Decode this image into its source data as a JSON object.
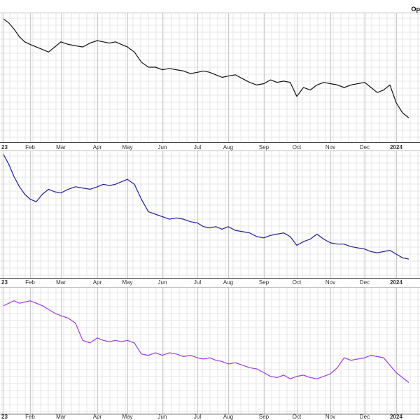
{
  "header": {
    "top_right_label": "Op"
  },
  "chart_data": [
    {
      "type": "line",
      "panel": 1,
      "series_color": "#111111",
      "ylim": [
        0,
        100
      ],
      "x_tick_labels": [
        "23",
        "Feb",
        "Mar",
        "Apr",
        "May",
        "Jun",
        "Jul",
        "Aug",
        "Sep",
        "Oct",
        "Nov",
        "Dec",
        "2024"
      ],
      "x_tick_months": [
        0,
        1,
        2,
        3,
        4,
        5,
        6,
        7,
        8,
        9,
        10,
        11,
        12
      ],
      "series": [
        {
          "x": [
            0,
            0.2,
            0.4,
            0.6,
            0.8,
            1.0,
            1.2,
            1.4,
            1.6,
            1.8,
            2.0,
            2.2,
            2.4,
            2.6,
            2.8,
            3.0,
            3.2,
            3.4,
            3.6,
            3.8,
            4.0,
            4.2,
            4.4,
            4.6,
            4.8,
            5.0,
            5.2,
            5.4,
            5.6,
            5.8,
            6.0,
            6.2,
            6.4,
            6.6,
            6.8,
            7.0,
            7.2,
            7.4,
            7.6,
            7.8,
            8.0,
            8.2,
            8.4,
            8.6,
            8.8,
            9.0,
            9.2,
            9.4,
            9.6,
            9.8,
            10.0,
            10.2,
            10.4,
            10.6,
            10.8,
            11.0,
            11.2,
            11.4,
            11.6,
            11.8,
            12.0,
            12.2,
            12.4
          ],
          "values": [
            96,
            93,
            88,
            82,
            78,
            76,
            74,
            72,
            70,
            74,
            78,
            76,
            75,
            74,
            77,
            79,
            78,
            77,
            78,
            76,
            74,
            70,
            62,
            58,
            58,
            56,
            57,
            56,
            55,
            53,
            54,
            55,
            54,
            52,
            50,
            51,
            52,
            49,
            46,
            44,
            45,
            48,
            46,
            47,
            46,
            35,
            42,
            40,
            44,
            46,
            45,
            44,
            42,
            44,
            45,
            46,
            42,
            38,
            40,
            44,
            30,
            22,
            18
          ]
        }
      ]
    },
    {
      "type": "line",
      "panel": 2,
      "series_color": "#1f1f8f",
      "ylim": [
        0,
        100
      ],
      "x_tick_labels": [
        "23",
        "Feb",
        "Mar",
        "Apr",
        "May",
        "Jun",
        "Jul",
        "Aug",
        "Sep",
        "Oct",
        "Nov",
        "Dec",
        "2024"
      ],
      "x_tick_months": [
        0,
        1,
        2,
        3,
        4,
        5,
        6,
        7,
        8,
        9,
        10,
        11,
        12
      ],
      "series": [
        {
          "x": [
            0,
            0.2,
            0.4,
            0.6,
            0.8,
            1.0,
            1.2,
            1.4,
            1.6,
            1.8,
            2.0,
            2.2,
            2.4,
            2.6,
            2.8,
            3.0,
            3.2,
            3.4,
            3.6,
            3.8,
            4.0,
            4.2,
            4.4,
            4.6,
            4.8,
            5.0,
            5.2,
            5.4,
            5.6,
            5.8,
            6.0,
            6.2,
            6.4,
            6.6,
            6.8,
            7.0,
            7.2,
            7.4,
            7.6,
            7.8,
            8.0,
            8.2,
            8.4,
            8.6,
            8.8,
            9.0,
            9.2,
            9.4,
            9.6,
            9.8,
            10.0,
            10.2,
            10.4,
            10.6,
            10.8,
            11.0,
            11.2,
            11.4,
            11.6,
            11.8,
            12.0,
            12.2,
            12.4
          ],
          "values": [
            98,
            90,
            80,
            72,
            66,
            62,
            60,
            66,
            70,
            68,
            67,
            70,
            72,
            71,
            70,
            72,
            74,
            73,
            74,
            76,
            78,
            74,
            62,
            52,
            50,
            48,
            46,
            47,
            46,
            44,
            43,
            40,
            39,
            40,
            38,
            40,
            37,
            36,
            35,
            32,
            31,
            33,
            34,
            35,
            32,
            25,
            28,
            30,
            34,
            30,
            27,
            26,
            26,
            24,
            23,
            22,
            20,
            19,
            20,
            21,
            18,
            15,
            14
          ]
        }
      ]
    },
    {
      "type": "line",
      "panel": 3,
      "series_color": "#9b3fd6",
      "ylim": [
        0,
        100
      ],
      "x_tick_labels": [
        "23",
        "Feb",
        "Mar",
        "Apr",
        "May",
        "Jun",
        "Jul",
        "Aug",
        "Sep",
        "Oct",
        "Nov",
        "Dec",
        "2024"
      ],
      "x_tick_months": [
        0,
        1,
        2,
        3,
        4,
        5,
        6,
        7,
        8,
        9,
        10,
        11,
        12
      ],
      "series": [
        {
          "x": [
            0,
            0.2,
            0.4,
            0.6,
            0.8,
            1.0,
            1.2,
            1.4,
            1.6,
            1.8,
            2.0,
            2.2,
            2.4,
            2.6,
            2.8,
            3.0,
            3.2,
            3.4,
            3.6,
            3.8,
            4.0,
            4.2,
            4.4,
            4.6,
            4.8,
            5.0,
            5.2,
            5.4,
            5.6,
            5.8,
            6.0,
            6.2,
            6.4,
            6.6,
            6.8,
            7.0,
            7.2,
            7.4,
            7.6,
            7.8,
            8.0,
            8.2,
            8.4,
            8.6,
            8.8,
            9.0,
            9.2,
            9.4,
            9.6,
            9.8,
            10.0,
            10.2,
            10.4,
            10.6,
            10.8,
            11.0,
            11.2,
            11.4,
            11.6,
            11.8,
            12.0,
            12.2,
            12.4
          ],
          "values": [
            86,
            88,
            90,
            88,
            89,
            90,
            88,
            86,
            83,
            80,
            78,
            76,
            72,
            58,
            56,
            60,
            58,
            57,
            58,
            57,
            58,
            56,
            47,
            46,
            48,
            46,
            48,
            47,
            45,
            46,
            44,
            43,
            44,
            42,
            41,
            39,
            40,
            38,
            36,
            35,
            32,
            29,
            28,
            30,
            27,
            29,
            30,
            28,
            27,
            29,
            31,
            36,
            44,
            42,
            43,
            44,
            46,
            45,
            44,
            38,
            32,
            28,
            24
          ]
        }
      ]
    }
  ]
}
